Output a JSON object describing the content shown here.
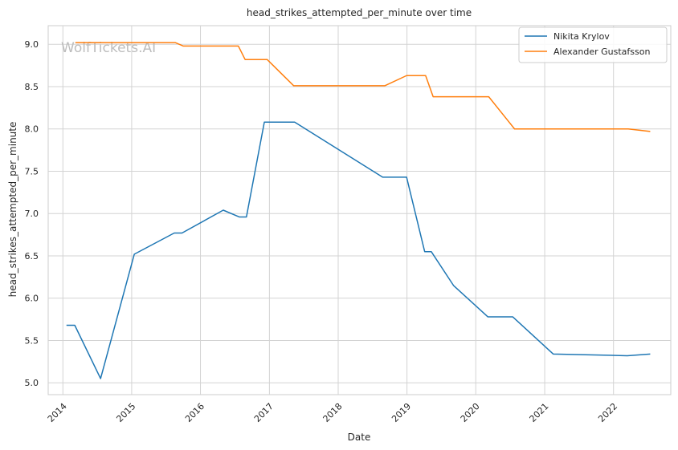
{
  "chart_data": {
    "type": "line",
    "title": "head_strikes_attempted_per_minute over time",
    "xlabel": "Date",
    "ylabel": "head_strikes_attempted_per_minute",
    "watermark": "WolfTickets.AI",
    "xlim": [
      "2013-10-15",
      "2022-11-01"
    ],
    "ylim": [
      4.86,
      9.22
    ],
    "x_ticks": [
      "2014",
      "2015",
      "2016",
      "2017",
      "2018",
      "2019",
      "2020",
      "2021",
      "2022"
    ],
    "y_ticks": [
      "5.0",
      "5.5",
      "6.0",
      "6.5",
      "7.0",
      "7.5",
      "8.0",
      "8.5",
      "9.0"
    ],
    "grid": true,
    "legend_position": "top-right",
    "series": [
      {
        "name": "Nikita Krylov",
        "color": "#1f77b4",
        "points": [
          [
            "2014-01-20",
            5.68
          ],
          [
            "2014-03-05",
            5.68
          ],
          [
            "2014-07-20",
            5.05
          ],
          [
            "2015-01-15",
            6.52
          ],
          [
            "2015-08-15",
            6.77
          ],
          [
            "2015-09-25",
            6.77
          ],
          [
            "2016-05-01",
            7.04
          ],
          [
            "2016-07-25",
            6.96
          ],
          [
            "2016-09-01",
            6.96
          ],
          [
            "2016-12-05",
            8.08
          ],
          [
            "2017-05-15",
            8.08
          ],
          [
            "2018-08-25",
            7.43
          ],
          [
            "2018-12-30",
            7.43
          ],
          [
            "2019-04-05",
            6.55
          ],
          [
            "2019-05-10",
            6.55
          ],
          [
            "2019-09-05",
            6.15
          ],
          [
            "2020-03-05",
            5.78
          ],
          [
            "2020-07-15",
            5.78
          ],
          [
            "2021-02-15",
            5.34
          ],
          [
            "2022-03-15",
            5.32
          ],
          [
            "2022-07-15",
            5.34
          ]
        ]
      },
      {
        "name": "Alexander Gustafsson",
        "color": "#ff7f0e",
        "points": [
          [
            "2014-03-08",
            9.02
          ],
          [
            "2015-08-20",
            9.02
          ],
          [
            "2015-10-01",
            8.98
          ],
          [
            "2016-07-20",
            8.98
          ],
          [
            "2016-08-25",
            8.82
          ],
          [
            "2016-12-20",
            8.82
          ],
          [
            "2017-05-10",
            8.51
          ],
          [
            "2018-09-05",
            8.51
          ],
          [
            "2018-12-30",
            8.63
          ],
          [
            "2019-04-10",
            8.63
          ],
          [
            "2019-05-20",
            8.38
          ],
          [
            "2020-03-10",
            8.38
          ],
          [
            "2020-07-25",
            8.0
          ],
          [
            "2022-03-20",
            8.0
          ],
          [
            "2022-07-15",
            7.97
          ]
        ]
      }
    ]
  }
}
